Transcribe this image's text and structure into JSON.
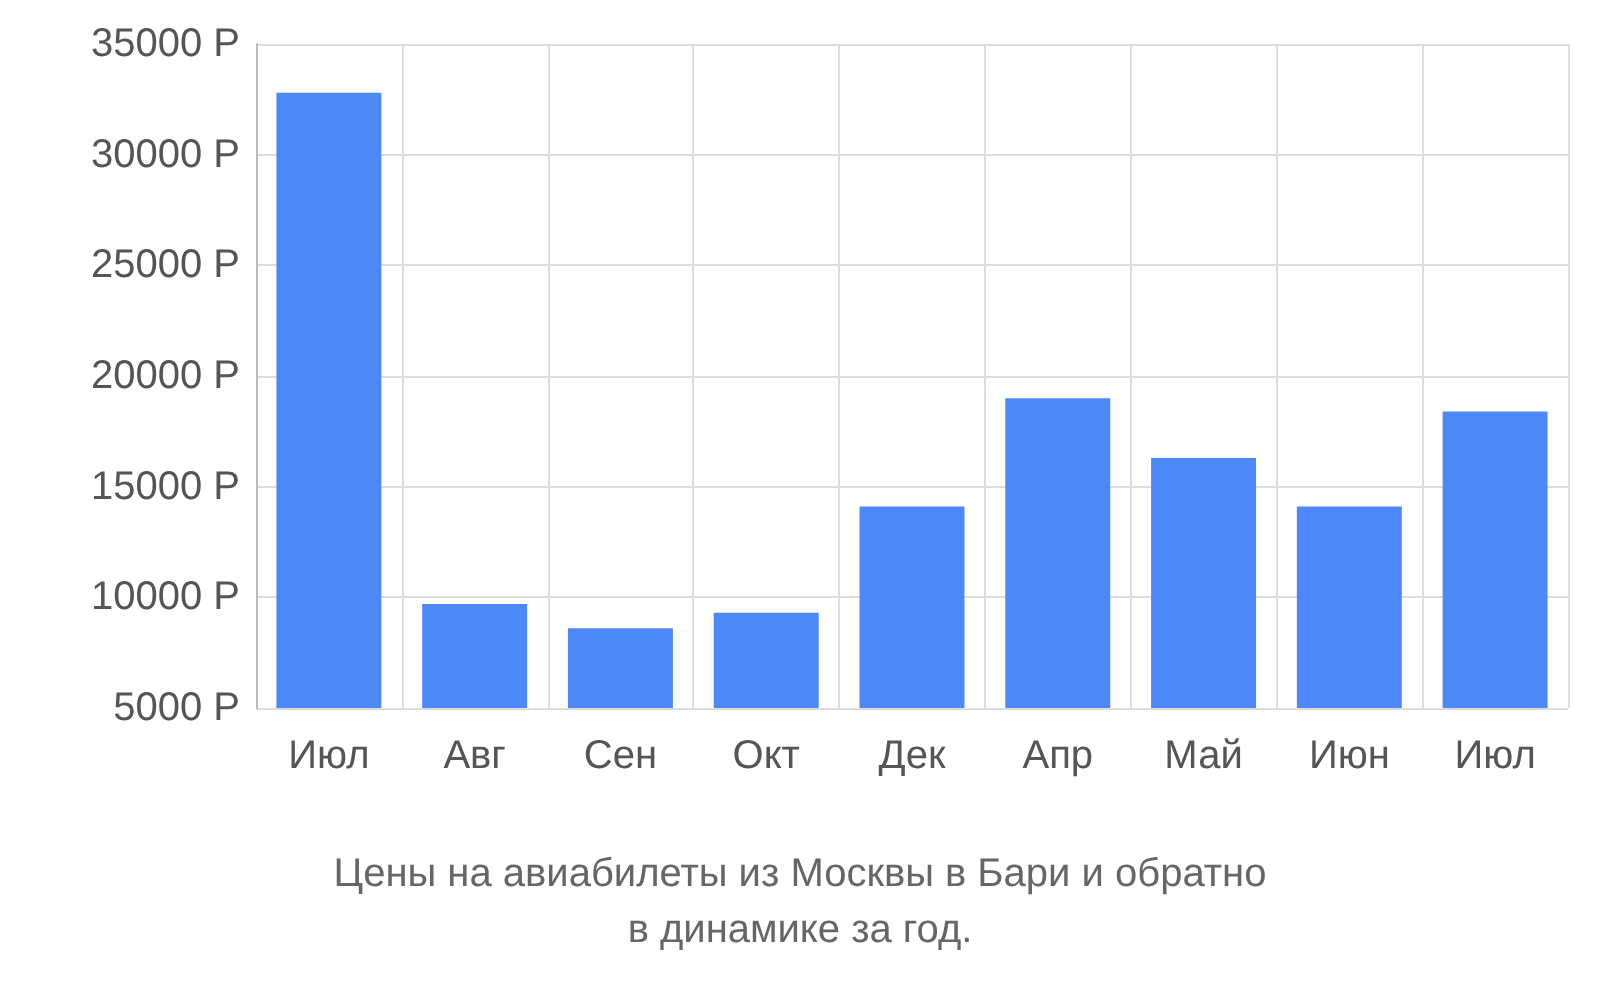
{
  "chart_data": {
    "type": "bar",
    "title": "Цены на авиабилеты из Москвы в Бари и обратно\nв динамике за год.",
    "categories": [
      "Июл",
      "Авг",
      "Сен",
      "Окт",
      "Дек",
      "Апр",
      "Май",
      "Июн",
      "Июл"
    ],
    "values": [
      32800,
      9700,
      8600,
      9300,
      14100,
      19000,
      16300,
      14100,
      18400
    ],
    "color": "#4d88f9",
    "ylim": [
      5000,
      35000
    ],
    "yticks": [
      {
        "value": 5000,
        "label": "5000 Р"
      },
      {
        "value": 10000,
        "label": "10000 Р"
      },
      {
        "value": 15000,
        "label": "15000 Р"
      },
      {
        "value": 20000,
        "label": "20000 Р"
      },
      {
        "value": 25000,
        "label": "25000 Р"
      },
      {
        "value": 30000,
        "label": "30000 Р"
      },
      {
        "value": 35000,
        "label": "35000 Р"
      }
    ],
    "grid": true
  }
}
